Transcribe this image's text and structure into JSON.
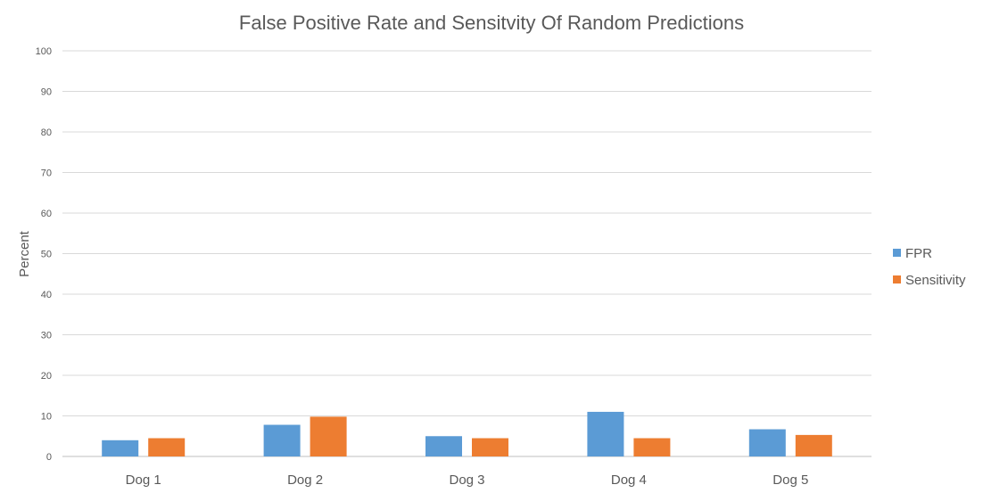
{
  "chart_data": {
    "type": "bar",
    "title": "False Positive Rate and Sensitvity Of Random Predictions",
    "xlabel": "",
    "ylabel": "Percent",
    "ylim": [
      0,
      100
    ],
    "yticks": [
      0,
      10,
      20,
      30,
      40,
      50,
      60,
      70,
      80,
      90,
      100
    ],
    "categories": [
      "Dog 1",
      "Dog 2",
      "Dog 3",
      "Dog 4",
      "Dog 5"
    ],
    "series": [
      {
        "name": "FPR",
        "color": "#5b9bd5",
        "values": [
          4,
          7.8,
          5,
          11,
          6.7
        ]
      },
      {
        "name": "Sensitivity",
        "color": "#ed7d31",
        "values": [
          4.5,
          9.8,
          4.5,
          4.5,
          5.3
        ]
      }
    ],
    "grid": true,
    "legend": "right"
  }
}
